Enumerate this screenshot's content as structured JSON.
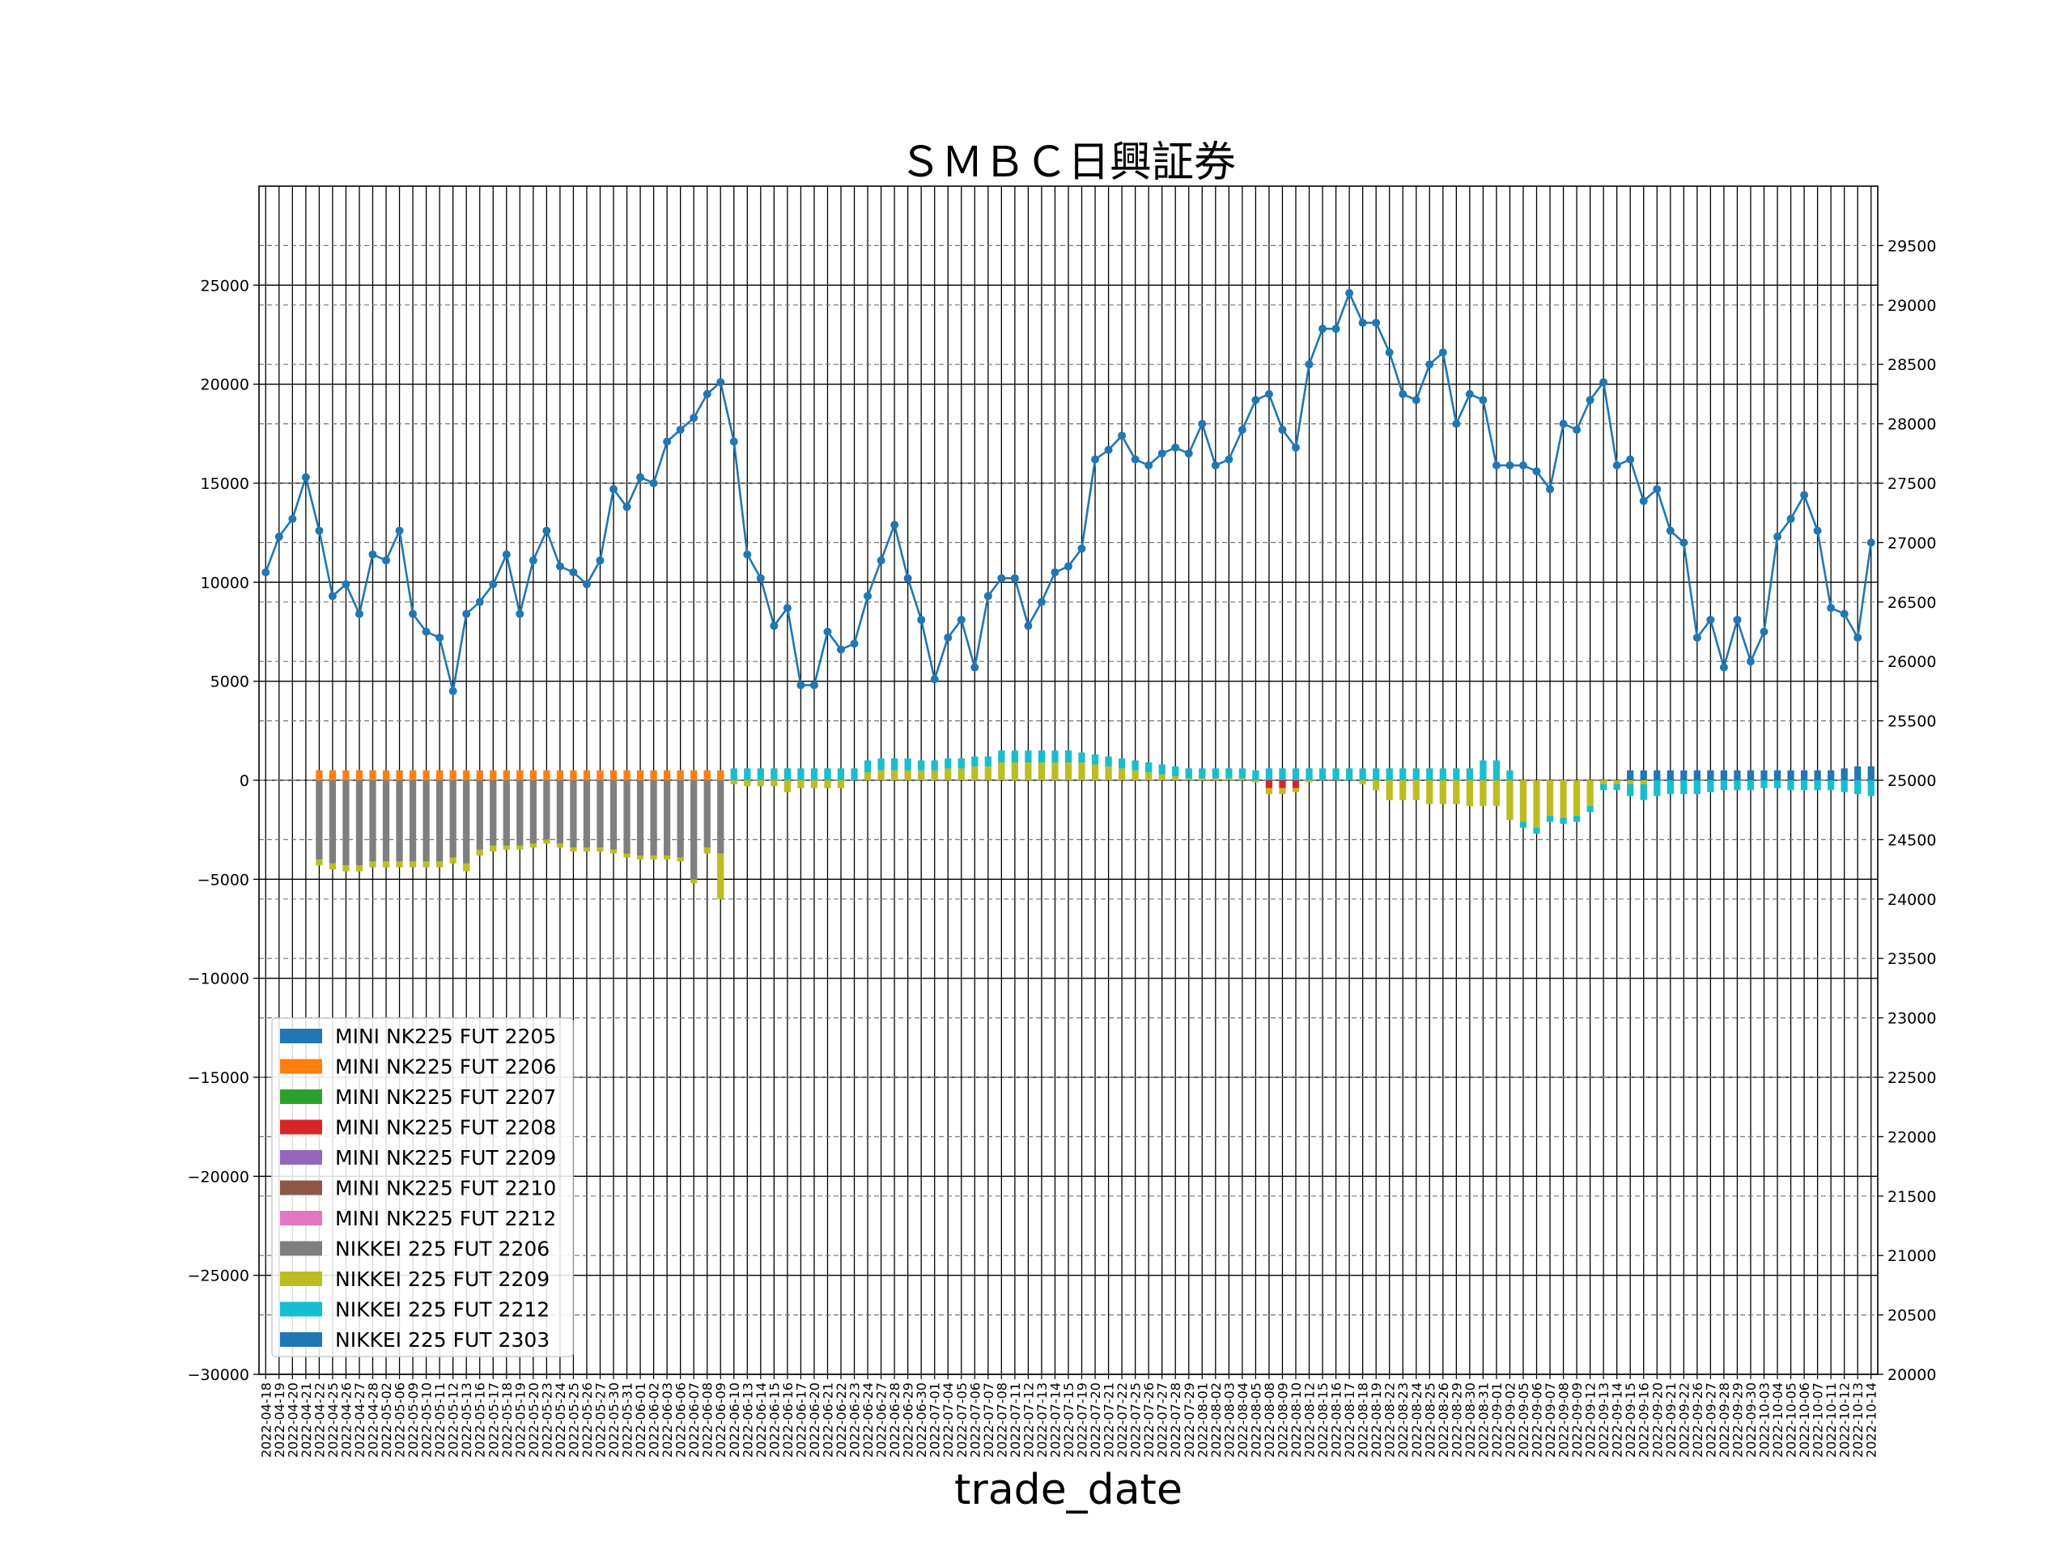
{
  "chart_data": {
    "type": "bar",
    "title": "ＳＭＢＣ日興証券",
    "xlabel": "trade_date",
    "ylabel": "",
    "y2label": "",
    "ylim": [
      -30000,
      30000
    ],
    "y2lim": [
      20000,
      30000
    ],
    "yticks": [
      "25000",
      "20000",
      "15000",
      "10000",
      "5000",
      "0",
      "−5000",
      "−10000",
      "−15000",
      "−20000",
      "−25000",
      "−30000"
    ],
    "y2ticks": [
      "29500",
      "29000",
      "28500",
      "28000",
      "27500",
      "27000",
      "26500",
      "26000",
      "25500",
      "25000",
      "24500",
      "24000",
      "23500",
      "23000",
      "22500",
      "22000",
      "21500",
      "21000",
      "20500",
      "20000"
    ],
    "grid": true,
    "legend_position": "lower-left",
    "colors": {
      "MINI NK225 FUT 2205": "#1f77b4",
      "MINI NK225 FUT 2206": "#ff7f0e",
      "MINI NK225 FUT 2207": "#2ca02c",
      "MINI NK225 FUT 2208": "#d62728",
      "MINI NK225 FUT 2209": "#9467bd",
      "MINI NK225 FUT 2210": "#8c564b",
      "MINI NK225 FUT 2212": "#e377c2",
      "NIKKEI 225 FUT 2206": "#7f7f7f",
      "NIKKEI 225 FUT 2209": "#bcbd22",
      "NIKKEI 225 FUT 2212": "#17becf",
      "NIKKEI 225 FUT 2303": "#1f77b4",
      "line": "#1f77b4"
    },
    "legend": [
      "MINI NK225 FUT 2205",
      "MINI NK225 FUT 2206",
      "MINI NK225 FUT 2207",
      "MINI NK225 FUT 2208",
      "MINI NK225 FUT 2209",
      "MINI NK225 FUT 2210",
      "MINI NK225 FUT 2212",
      "NIKKEI 225 FUT 2206",
      "NIKKEI 225 FUT 2209",
      "NIKKEI 225 FUT 2212",
      "NIKKEI 225 FUT 2303"
    ],
    "dates": [
      "2022-04-18",
      "2022-04-19",
      "2022-04-20",
      "2022-04-21",
      "2022-04-22",
      "2022-04-25",
      "2022-04-26",
      "2022-04-27",
      "2022-04-28",
      "2022-05-02",
      "2022-05-06",
      "2022-05-09",
      "2022-05-10",
      "2022-05-11",
      "2022-05-12",
      "2022-05-13",
      "2022-05-16",
      "2022-05-17",
      "2022-05-18",
      "2022-05-19",
      "2022-05-20",
      "2022-05-23",
      "2022-05-24",
      "2022-05-25",
      "2022-05-26",
      "2022-05-27",
      "2022-05-30",
      "2022-05-31",
      "2022-06-01",
      "2022-06-02",
      "2022-06-03",
      "2022-06-06",
      "2022-06-07",
      "2022-06-08",
      "2022-06-09",
      "2022-06-10",
      "2022-06-13",
      "2022-06-14",
      "2022-06-15",
      "2022-06-16",
      "2022-06-17",
      "2022-06-20",
      "2022-06-21",
      "2022-06-22",
      "2022-06-23",
      "2022-06-24",
      "2022-06-27",
      "2022-06-28",
      "2022-06-29",
      "2022-06-30",
      "2022-07-01",
      "2022-07-04",
      "2022-07-05",
      "2022-07-06",
      "2022-07-07",
      "2022-07-08",
      "2022-07-11",
      "2022-07-12",
      "2022-07-13",
      "2022-07-14",
      "2022-07-15",
      "2022-07-19",
      "2022-07-20",
      "2022-07-21",
      "2022-07-22",
      "2022-07-25",
      "2022-07-26",
      "2022-07-27",
      "2022-07-28",
      "2022-07-29",
      "2022-08-01",
      "2022-08-02",
      "2022-08-03",
      "2022-08-04",
      "2022-08-05",
      "2022-08-08",
      "2022-08-09",
      "2022-08-10",
      "2022-08-12",
      "2022-08-15",
      "2022-08-16",
      "2022-08-17",
      "2022-08-18",
      "2022-08-19",
      "2022-08-22",
      "2022-08-23",
      "2022-08-24",
      "2022-08-25",
      "2022-08-26",
      "2022-08-29",
      "2022-08-30",
      "2022-08-31",
      "2022-09-01",
      "2022-09-02",
      "2022-09-05",
      "2022-09-06",
      "2022-09-07",
      "2022-09-08",
      "2022-09-09",
      "2022-09-12",
      "2022-09-13",
      "2022-09-14",
      "2022-09-15",
      "2022-09-16",
      "2022-09-20",
      "2022-09-21",
      "2022-09-22",
      "2022-09-26",
      "2022-09-27",
      "2022-09-28",
      "2022-09-29",
      "2022-09-30",
      "2022-10-03",
      "2022-10-04",
      "2022-10-05",
      "2022-10-06",
      "2022-10-07",
      "2022-10-11",
      "2022-10-12",
      "2022-10-13",
      "2022-10-14"
    ],
    "line_values": [
      26750,
      27050,
      27200,
      27550,
      27100,
      26550,
      26650,
      26400,
      26900,
      26850,
      27100,
      26400,
      26250,
      26200,
      25750,
      26400,
      26500,
      26650,
      26900,
      26400,
      26850,
      27100,
      26800,
      26750,
      26650,
      26850,
      27450,
      27300,
      27550,
      27500,
      27850,
      27950,
      28050,
      28250,
      28350,
      27850,
      26900,
      26700,
      26300,
      26450,
      25800,
      25800,
      26250,
      26100,
      26150,
      26550,
      26850,
      27150,
      26700,
      26350,
      25850,
      26200,
      26350,
      25950,
      26550,
      26700,
      26700,
      26300,
      26500,
      26750,
      26800,
      26950,
      27700,
      27780,
      27900,
      27700,
      27650,
      27750,
      27800,
      27750,
      28000,
      27650,
      27700,
      27950,
      28200,
      28250,
      27950,
      27800,
      28500,
      28800,
      28800,
      29100,
      28850,
      28850,
      28600,
      28250,
      28200,
      28500,
      28600,
      28000,
      28250,
      28200,
      27650,
      27650,
      27650,
      27600,
      27450,
      28000,
      27950,
      28200,
      28350,
      27650,
      27700,
      27350,
      27450,
      27100,
      27000,
      26200,
      26350,
      25950,
      26350,
      26000,
      26250,
      27050,
      27200,
      27400,
      27100,
      26450,
      26400,
      26200,
      27000
    ],
    "series": [
      {
        "name": "MINI NK225 FUT 2206",
        "values": [
          0,
          0,
          0,
          0,
          500,
          500,
          500,
          500,
          500,
          500,
          500,
          500,
          500,
          500,
          500,
          500,
          500,
          500,
          500,
          500,
          500,
          500,
          500,
          500,
          500,
          500,
          500,
          500,
          500,
          500,
          500,
          500,
          500,
          500,
          500,
          0,
          0,
          0,
          0,
          0,
          0,
          0,
          0,
          0,
          0,
          0,
          0,
          0,
          0,
          0,
          0,
          0,
          0,
          0,
          0,
          0,
          0,
          0,
          0,
          0,
          0,
          0,
          0,
          0,
          0,
          0,
          0,
          0,
          0,
          0,
          0,
          0,
          0,
          0,
          0,
          0,
          0,
          0,
          0,
          0,
          0,
          0,
          0,
          0,
          0,
          0,
          0,
          0,
          0,
          0,
          0,
          0,
          0,
          0,
          0,
          0,
          0,
          0,
          0,
          0,
          0,
          0,
          0,
          0,
          0,
          0,
          0,
          0,
          0,
          0,
          0,
          0,
          0,
          0,
          0,
          0,
          0,
          0,
          0,
          0,
          0
        ]
      },
      {
        "name": "MINI NK225 FUT 2208",
        "values": [
          0,
          0,
          0,
          0,
          0,
          0,
          0,
          0,
          0,
          0,
          0,
          0,
          0,
          0,
          0,
          0,
          0,
          0,
          0,
          0,
          0,
          0,
          0,
          0,
          0,
          0,
          0,
          0,
          0,
          0,
          0,
          0,
          0,
          0,
          0,
          0,
          0,
          0,
          0,
          0,
          0,
          0,
          0,
          0,
          0,
          0,
          0,
          0,
          0,
          0,
          0,
          0,
          0,
          0,
          0,
          0,
          0,
          0,
          0,
          0,
          0,
          0,
          0,
          0,
          0,
          0,
          0,
          0,
          0,
          0,
          0,
          0,
          0,
          0,
          0,
          -400,
          -400,
          -400,
          0,
          0,
          0,
          0,
          0,
          0,
          0,
          0,
          0,
          0,
          0,
          0,
          0,
          0,
          0,
          0,
          0,
          0,
          0,
          0,
          0,
          0,
          0,
          0,
          0,
          0,
          0,
          0,
          0,
          0,
          0,
          0,
          0,
          0,
          0,
          0,
          0,
          0,
          0,
          0,
          0,
          0,
          0
        ]
      },
      {
        "name": "NIKKEI 225 FUT 2206",
        "values": [
          0,
          0,
          0,
          0,
          -4000,
          -4200,
          -4300,
          -4300,
          -4100,
          -4100,
          -4100,
          -4100,
          -4100,
          -4100,
          -3900,
          -4200,
          -3500,
          -3300,
          -3300,
          -3300,
          -3200,
          -3000,
          -3200,
          -3400,
          -3400,
          -3400,
          -3500,
          -3700,
          -3800,
          -3800,
          -3800,
          -3900,
          -5000,
          -3400,
          -3700,
          0,
          0,
          0,
          0,
          0,
          0,
          0,
          0,
          0,
          0,
          0,
          0,
          0,
          0,
          0,
          0,
          0,
          0,
          0,
          0,
          0,
          0,
          0,
          0,
          0,
          0,
          0,
          0,
          0,
          0,
          0,
          0,
          0,
          0,
          0,
          0,
          0,
          0,
          0,
          0,
          0,
          0,
          0,
          0,
          0,
          0,
          0,
          0,
          0,
          0,
          0,
          0,
          0,
          0,
          0,
          0,
          0,
          0,
          0,
          0,
          0,
          0,
          0,
          0,
          0,
          0,
          0,
          0,
          0,
          0,
          0,
          0,
          0,
          0,
          0,
          0,
          0,
          0,
          0,
          0,
          0,
          0,
          0,
          0,
          0,
          0
        ]
      },
      {
        "name": "NIKKEI 225 FUT 2209",
        "values": [
          0,
          0,
          0,
          0,
          -300,
          -300,
          -300,
          -300,
          -300,
          -300,
          -300,
          -300,
          -300,
          -300,
          -300,
          -400,
          -300,
          -300,
          -200,
          -200,
          -200,
          -200,
          -200,
          -200,
          -200,
          -200,
          -200,
          -200,
          -200,
          -200,
          -200,
          -200,
          -200,
          -300,
          -2300,
          -200,
          -300,
          -300,
          -300,
          -600,
          -400,
          -400,
          -400,
          -400,
          0,
          400,
          500,
          500,
          500,
          500,
          500,
          600,
          600,
          700,
          700,
          900,
          900,
          900,
          900,
          900,
          900,
          900,
          800,
          700,
          600,
          500,
          400,
          300,
          200,
          100,
          100,
          100,
          100,
          100,
          -100,
          -300,
          -300,
          -200,
          -100,
          0,
          0,
          0,
          -200,
          -500,
          -1000,
          -1000,
          -1000,
          -1200,
          -1200,
          -1200,
          -1300,
          -1300,
          -1300,
          -2000,
          -2100,
          -2400,
          -1800,
          -1900,
          -1800,
          -1300,
          -200,
          -200,
          -200,
          -200,
          0,
          0,
          0,
          0,
          0,
          0,
          0,
          0,
          0,
          0,
          0,
          0,
          0,
          0,
          0,
          0,
          0
        ]
      },
      {
        "name": "NIKKEI 225 FUT 2212",
        "values": [
          0,
          0,
          0,
          0,
          0,
          0,
          0,
          0,
          0,
          0,
          0,
          0,
          0,
          0,
          0,
          0,
          0,
          0,
          0,
          0,
          0,
          0,
          0,
          0,
          0,
          0,
          0,
          0,
          0,
          0,
          0,
          0,
          0,
          0,
          0,
          600,
          600,
          600,
          600,
          600,
          600,
          600,
          600,
          600,
          600,
          600,
          600,
          600,
          600,
          500,
          500,
          500,
          500,
          500,
          500,
          600,
          600,
          600,
          600,
          600,
          600,
          500,
          500,
          500,
          500,
          500,
          500,
          500,
          500,
          500,
          500,
          500,
          500,
          500,
          500,
          600,
          600,
          600,
          600,
          600,
          600,
          600,
          600,
          600,
          600,
          600,
          600,
          600,
          600,
          600,
          600,
          1000,
          1000,
          500,
          -300,
          -300,
          -300,
          -300,
          -300,
          -300,
          -300,
          -300,
          -600,
          -800,
          -800,
          -700,
          -700,
          -700,
          -600,
          -500,
          -500,
          -500,
          -400,
          -400,
          -500,
          -500,
          -500,
          -500,
          -600,
          -700,
          -800
        ]
      },
      {
        "name": "NIKKEI 225 FUT 2303",
        "values": [
          0,
          0,
          0,
          0,
          0,
          0,
          0,
          0,
          0,
          0,
          0,
          0,
          0,
          0,
          0,
          0,
          0,
          0,
          0,
          0,
          0,
          0,
          0,
          0,
          0,
          0,
          0,
          0,
          0,
          0,
          0,
          0,
          0,
          0,
          0,
          0,
          0,
          0,
          0,
          0,
          0,
          0,
          0,
          0,
          0,
          0,
          0,
          0,
          0,
          0,
          0,
          0,
          0,
          0,
          0,
          0,
          0,
          0,
          0,
          0,
          0,
          0,
          0,
          0,
          0,
          0,
          0,
          0,
          0,
          0,
          0,
          0,
          0,
          0,
          0,
          0,
          0,
          0,
          0,
          0,
          0,
          0,
          0,
          0,
          0,
          0,
          0,
          0,
          0,
          0,
          0,
          0,
          0,
          0,
          0,
          0,
          0,
          0,
          0,
          0,
          0,
          0,
          500,
          500,
          500,
          500,
          500,
          500,
          500,
          500,
          500,
          500,
          500,
          500,
          500,
          500,
          500,
          500,
          600,
          700,
          700
        ]
      }
    ]
  }
}
